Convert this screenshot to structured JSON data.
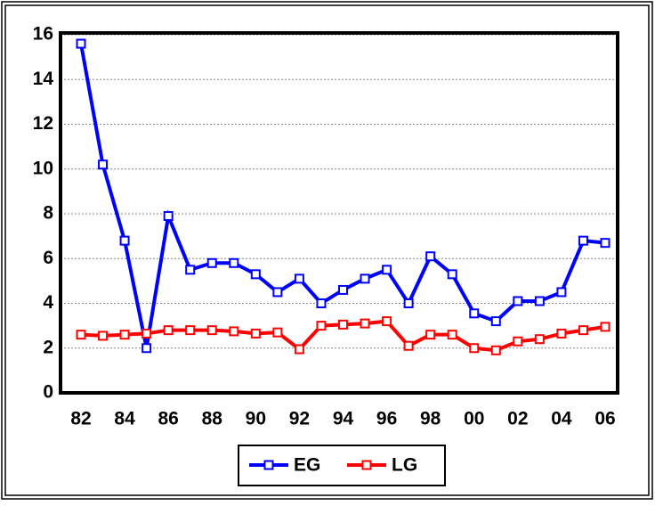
{
  "chart_data": {
    "type": "line",
    "categories": [
      "82",
      null,
      "84",
      null,
      "86",
      null,
      "88",
      null,
      "90",
      null,
      "92",
      null,
      "94",
      null,
      "96",
      null,
      "98",
      null,
      "00",
      null,
      "02",
      null,
      "04",
      null,
      "06"
    ],
    "series": [
      {
        "name": "EG",
        "color": "#0000ff",
        "values": [
          15.6,
          10.2,
          6.8,
          2.0,
          7.9,
          5.5,
          5.8,
          5.8,
          5.3,
          4.5,
          5.1,
          4.0,
          4.6,
          5.1,
          5.5,
          4.0,
          6.1,
          5.3,
          3.55,
          3.2,
          4.1,
          4.1,
          4.5,
          6.8,
          6.7
        ]
      },
      {
        "name": "LG",
        "color": "#ff0000",
        "values": [
          2.6,
          2.55,
          2.6,
          2.65,
          2.8,
          2.8,
          2.8,
          2.75,
          2.65,
          2.7,
          1.95,
          3.0,
          3.05,
          3.1,
          3.2,
          2.1,
          2.6,
          2.6,
          2.0,
          1.9,
          2.3,
          2.4,
          2.65,
          2.8,
          2.95
        ]
      }
    ],
    "ylim": [
      0,
      16
    ],
    "yticks": [
      0,
      2,
      4,
      6,
      8,
      10,
      12,
      14,
      16
    ],
    "grid": true,
    "legend": "bottom"
  }
}
